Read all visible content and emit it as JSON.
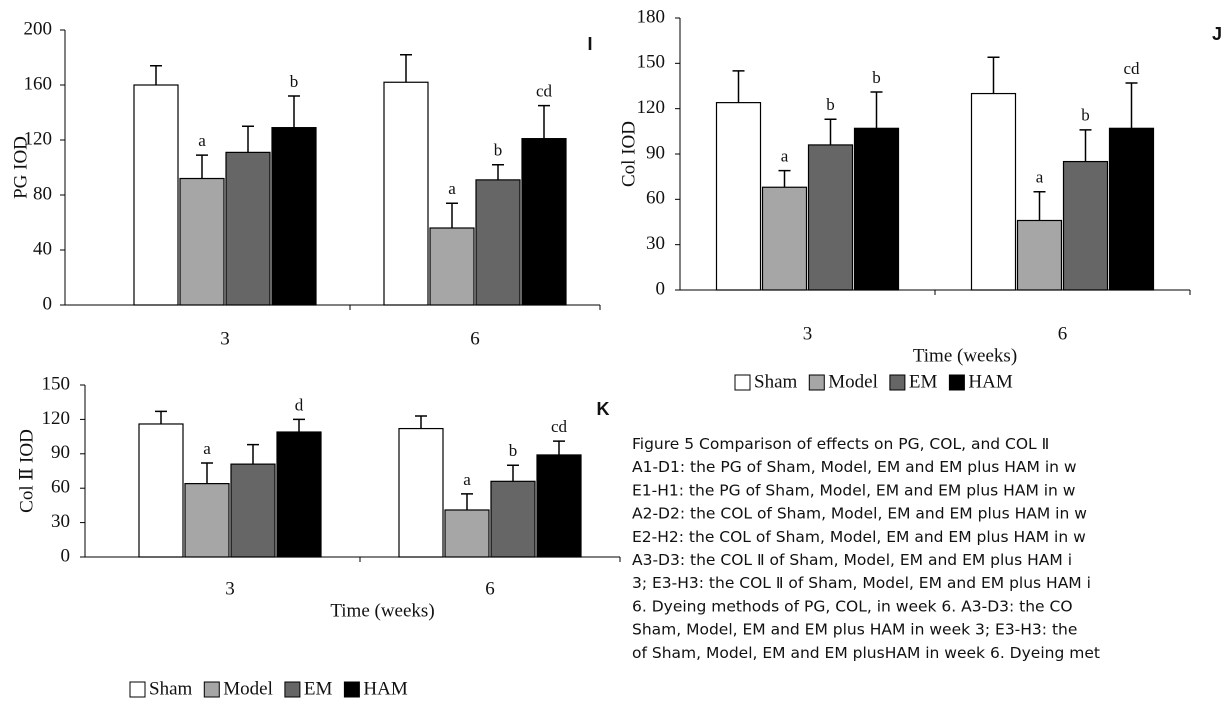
{
  "chart_data": [
    {
      "type": "bar",
      "panel": "I",
      "y_label": "PG IOD",
      "categories": [
        "3",
        "6"
      ],
      "ylim": [
        0,
        200
      ],
      "yticks": [
        0,
        40,
        80,
        120,
        160,
        200
      ],
      "series": [
        {
          "name": "Sham",
          "color": "#ffffff",
          "values": [
            160,
            162
          ],
          "errors": [
            14,
            20
          ],
          "labels": [
            null,
            null
          ]
        },
        {
          "name": "Model",
          "color": "#a6a6a6",
          "values": [
            92,
            56
          ],
          "errors": [
            17,
            18
          ],
          "labels": [
            "a",
            "a"
          ]
        },
        {
          "name": "EM",
          "color": "#666666",
          "values": [
            111,
            91
          ],
          "errors": [
            19,
            11
          ],
          "labels": [
            null,
            "b"
          ]
        },
        {
          "name": "HAM",
          "color": "#000000",
          "values": [
            129,
            121
          ],
          "errors": [
            23,
            24
          ],
          "labels": [
            "b",
            "cd"
          ]
        }
      ]
    },
    {
      "type": "bar",
      "panel": "J",
      "y_label": "Col IOD",
      "x_label": "Time (weeks)",
      "categories": [
        "3",
        "6"
      ],
      "ylim": [
        0,
        180
      ],
      "yticks": [
        0,
        30,
        60,
        90,
        120,
        150,
        180
      ],
      "legend": "bottom",
      "series": [
        {
          "name": "Sham",
          "color": "#ffffff",
          "values": [
            124,
            130
          ],
          "errors": [
            21,
            24
          ],
          "labels": [
            null,
            null
          ]
        },
        {
          "name": "Model",
          "color": "#a6a6a6",
          "values": [
            68,
            46
          ],
          "errors": [
            11,
            19
          ],
          "labels": [
            "a",
            "a"
          ]
        },
        {
          "name": "EM",
          "color": "#666666",
          "values": [
            96,
            85
          ],
          "errors": [
            17,
            21
          ],
          "labels": [
            "b",
            "b"
          ]
        },
        {
          "name": "HAM",
          "color": "#000000",
          "values": [
            107,
            107
          ],
          "errors": [
            24,
            30
          ],
          "labels": [
            "b",
            "cd"
          ]
        }
      ]
    },
    {
      "type": "bar",
      "panel": "K",
      "y_label": "Col Ⅱ IOD",
      "x_label": "Time (weeks)",
      "categories": [
        "3",
        "6"
      ],
      "ylim": [
        0,
        150
      ],
      "yticks": [
        0,
        30,
        60,
        90,
        120,
        150
      ],
      "legend": "bottom",
      "series": [
        {
          "name": "Sham",
          "color": "#ffffff",
          "values": [
            116,
            112
          ],
          "errors": [
            11,
            11
          ],
          "labels": [
            null,
            null
          ]
        },
        {
          "name": "Model",
          "color": "#a6a6a6",
          "values": [
            64,
            41
          ],
          "errors": [
            18,
            14
          ],
          "labels": [
            "a",
            "a"
          ]
        },
        {
          "name": "EM",
          "color": "#666666",
          "values": [
            81,
            66
          ],
          "errors": [
            17,
            14
          ],
          "labels": [
            null,
            "b"
          ]
        },
        {
          "name": "HAM",
          "color": "#000000",
          "values": [
            109,
            89
          ],
          "errors": [
            11,
            12
          ],
          "labels": [
            "d",
            "cd"
          ]
        }
      ]
    }
  ],
  "caption": {
    "lines": [
      "Figure 5 Comparison of effects on PG, COL, and COL Ⅱ",
      "A1-D1: the PG of Sham, Model, EM and EM plus HAM in w",
      "E1-H1: the PG of Sham, Model, EM and EM plus HAM in w",
      "A2-D2: the COL of Sham, Model, EM and EM plus HAM in w",
      "E2-H2: the COL of Sham, Model, EM and EM plus HAM in w",
      "A3-D3: the COL Ⅱ of Sham, Model, EM and EM plus HAM i",
      "3; E3-H3: the COL Ⅱ of Sham, Model, EM and EM plus HAM i",
      "6. Dyeing methods of PG, COL, in week 6. A3-D3: the CO",
      "Sham, Model, EM and EM plus HAM in week 3; E3-H3: the",
      "of Sham, Model, EM and EM plusHAM in week 6. Dyeing met"
    ]
  }
}
